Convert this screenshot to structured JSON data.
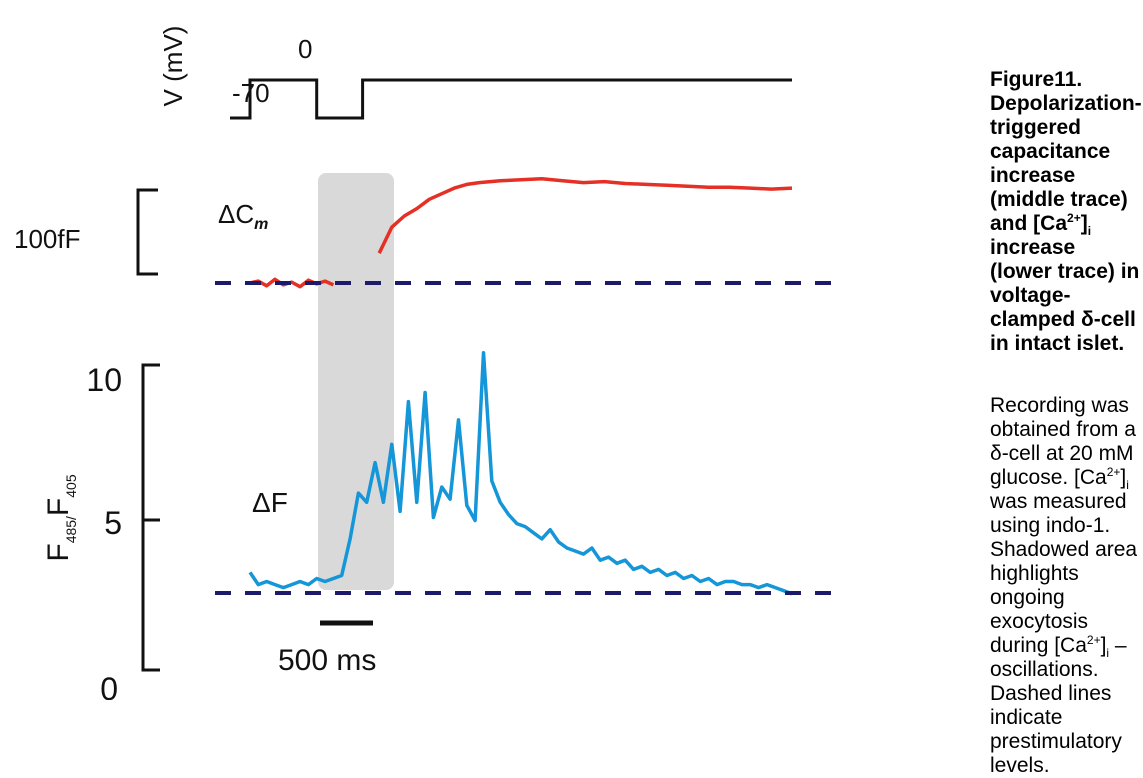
{
  "chart_data": [
    {
      "panel": "voltage",
      "type": "line",
      "ylabel": "V (mV)",
      "levels": {
        "holding": "-70",
        "pulse": "0"
      },
      "x": [
        0,
        160,
        160,
        270,
        270,
        1300
      ],
      "values": [
        -70,
        -70,
        0,
        0,
        -70,
        -70
      ]
    },
    {
      "panel": "capacitance",
      "type": "line",
      "label": "ΔC",
      "label_sub": "m",
      "scale_bar_label": "100fF",
      "color": "#e53025",
      "segments": [
        {
          "x": [
            0,
            20,
            40,
            60,
            80,
            100,
            120,
            140,
            160,
            180,
            200
          ],
          "values": [
            0,
            2,
            -3,
            4,
            -2,
            1,
            -4,
            3,
            -1,
            2,
            -2
          ]
        },
        {
          "x": [
            310,
            340,
            370,
            400,
            430,
            460,
            490,
            520,
            550,
            600,
            650,
            700,
            750,
            800,
            850,
            900,
            950,
            1000,
            1050,
            1100,
            1150,
            1200,
            1250,
            1300
          ],
          "values": [
            32,
            60,
            72,
            80,
            90,
            96,
            102,
            106,
            108,
            110,
            111,
            112,
            110,
            108,
            109,
            107,
            106,
            105,
            104,
            103,
            103,
            102,
            101,
            102
          ]
        }
      ]
    },
    {
      "panel": "calcium",
      "type": "line",
      "label": "ΔF",
      "ylabel_parts": [
        "F",
        "485/",
        "F",
        "405"
      ],
      "ylim": [
        0,
        10
      ],
      "yticks": [
        "0",
        "5",
        "10"
      ],
      "color": "#1496d8",
      "baseline": 2.8,
      "x": [
        0,
        20,
        40,
        60,
        80,
        100,
        120,
        140,
        160,
        180,
        200,
        220,
        240,
        260,
        280,
        300,
        320,
        340,
        360,
        380,
        400,
        420,
        440,
        460,
        480,
        500,
        520,
        540,
        560,
        580,
        600,
        620,
        640,
        660,
        680,
        700,
        720,
        740,
        760,
        780,
        800,
        820,
        840,
        860,
        880,
        900,
        920,
        940,
        960,
        980,
        1000,
        1020,
        1040,
        1060,
        1080,
        1100,
        1120,
        1140,
        1160,
        1180,
        1200,
        1220,
        1240,
        1260,
        1280,
        1300
      ],
      "values": [
        3.2,
        2.8,
        2.9,
        2.8,
        2.7,
        2.8,
        2.9,
        2.8,
        3.0,
        2.9,
        3.0,
        3.1,
        4.3,
        5.8,
        5.5,
        6.8,
        5.5,
        7.4,
        5.2,
        8.8,
        5.5,
        9.1,
        5.0,
        6.0,
        5.6,
        8.2,
        5.4,
        4.9,
        10.4,
        6.2,
        5.5,
        5.1,
        4.8,
        4.7,
        4.5,
        4.3,
        4.6,
        4.2,
        4.0,
        3.9,
        3.8,
        4.0,
        3.6,
        3.7,
        3.5,
        3.6,
        3.3,
        3.4,
        3.2,
        3.3,
        3.1,
        3.2,
        3.0,
        3.1,
        2.9,
        3.0,
        2.8,
        2.9,
        2.9,
        2.8,
        2.8,
        2.7,
        2.8,
        2.7,
        2.6,
        2.5
      ]
    }
  ],
  "time_scale_bar": {
    "label": "500 ms",
    "value_ms": 500
  },
  "shaded_region_label": "",
  "caption": {
    "title_lines": [
      "Figure11.",
      "Depolarization-",
      "triggered capacitance",
      "increase (middle trace)",
      "and [Ca",
      "2+",
      "]",
      "i",
      " increase",
      "(lower trace) in",
      "voltage-clamped δ-cell",
      "in intact islet."
    ],
    "body": {
      "part1": "Recording was obtained from a δ-cell at 20 mM glucose. [Ca",
      "sup1": "2+",
      "part2": "]",
      "sub1": "i",
      "part3": " was measured using indo-1. Shadowed area highlights ongoing exocytosis during [Ca",
      "sup2": "2+",
      "part4": "]",
      "sub2": "i",
      "part5": " –oscillations. Dashed lines indicate prestimulatory levels."
    }
  },
  "colors": {
    "capacitance_trace": "#e53025",
    "calcium_trace": "#1496d8",
    "dashed_baseline": "#1c1a6a",
    "shaded_area": "#d9d9d9",
    "axes": "#111111"
  }
}
